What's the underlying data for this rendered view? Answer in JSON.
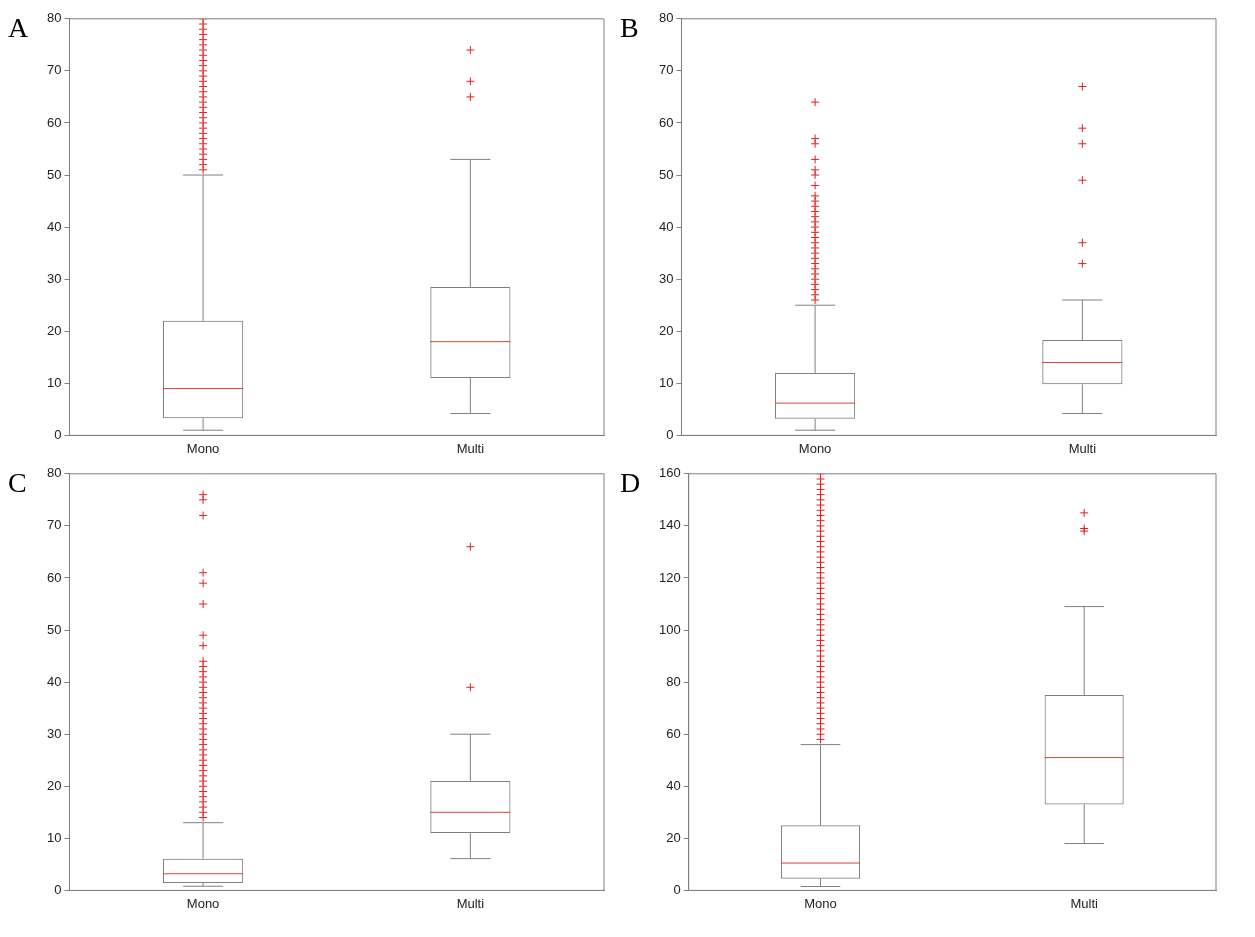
{
  "chart_data": [
    {
      "type": "box",
      "title": "A",
      "categories": [
        "Mono",
        "Multi"
      ],
      "color": "#808080",
      "marker": "cross",
      "ylim": [
        0,
        80
      ],
      "yticks": [
        0,
        10,
        20,
        30,
        40,
        50,
        60,
        70,
        80
      ],
      "boxes": [
        {
          "low": 1,
          "q1": 3.3,
          "median": 9,
          "q3": 22,
          "high": 50,
          "outliers": [
            51,
            52,
            53,
            54,
            55,
            56,
            57,
            58,
            59,
            60,
            61,
            62,
            63,
            64,
            65,
            66,
            67,
            68,
            69,
            70,
            71,
            72,
            73,
            74,
            75,
            76,
            77,
            78,
            79,
            80
          ]
        },
        {
          "low": 4.2,
          "q1": 11,
          "median": 18,
          "q3": 28.5,
          "high": 53,
          "outliers": [
            65,
            68,
            74
          ]
        }
      ]
    },
    {
      "type": "box",
      "title": "B",
      "categories": [
        "Mono",
        "Multi"
      ],
      "color": "#808080",
      "marker": "cross",
      "ylim": [
        0,
        80
      ],
      "yticks": [
        0,
        10,
        20,
        30,
        40,
        50,
        60,
        70,
        80
      ],
      "boxes": [
        {
          "low": 1,
          "q1": 3.2,
          "median": 6.2,
          "q3": 12,
          "high": 25,
          "outliers": [
            26,
            27,
            28,
            29,
            30,
            31,
            32,
            33,
            34,
            35,
            36,
            37,
            38,
            39,
            40,
            41,
            42,
            43,
            44,
            45,
            46,
            48,
            50,
            51,
            53,
            56,
            57,
            64
          ]
        },
        {
          "low": 4.2,
          "q1": 9.8,
          "median": 14,
          "q3": 18.3,
          "high": 26,
          "outliers": [
            33,
            37,
            49,
            56,
            59,
            67
          ]
        }
      ]
    },
    {
      "type": "box",
      "title": "C",
      "categories": [
        "Mono",
        "Multi"
      ],
      "color": "#808080",
      "marker": "cross",
      "ylim": [
        0,
        80
      ],
      "yticks": [
        0,
        10,
        20,
        30,
        40,
        50,
        60,
        70,
        80
      ],
      "boxes": [
        {
          "low": 0.8,
          "q1": 1.4,
          "median": 3.2,
          "q3": 6.1,
          "high": 13,
          "outliers": [
            14,
            15,
            16,
            17,
            18,
            19,
            20,
            21,
            22,
            23,
            24,
            25,
            26,
            27,
            28,
            29,
            30,
            31,
            32,
            33,
            34,
            35,
            36,
            37,
            38,
            39,
            40,
            41,
            42,
            43,
            44,
            47,
            49,
            55,
            59,
            61,
            72,
            75,
            76
          ]
        },
        {
          "low": 6.1,
          "q1": 11,
          "median": 15,
          "q3": 21,
          "high": 30,
          "outliers": [
            39,
            66
          ]
        }
      ]
    },
    {
      "type": "box",
      "title": "D",
      "categories": [
        "Mono",
        "Multi"
      ],
      "color": "#808080",
      "marker": "cross",
      "ylim": [
        0,
        160
      ],
      "yticks": [
        0,
        20,
        40,
        60,
        80,
        100,
        120,
        140,
        160
      ],
      "boxes": [
        {
          "low": 1.5,
          "q1": 4.5,
          "median": 10.5,
          "q3": 25,
          "high": 56,
          "outliers": [
            58,
            60,
            62,
            64,
            66,
            68,
            70,
            72,
            74,
            76,
            78,
            80,
            82,
            84,
            86,
            88,
            90,
            92,
            94,
            96,
            98,
            100,
            102,
            104,
            106,
            108,
            110,
            112,
            114,
            116,
            118,
            120,
            122,
            124,
            126,
            128,
            130,
            132,
            134,
            136,
            138,
            140,
            142,
            144,
            146,
            148,
            150,
            152,
            154,
            156,
            158,
            160
          ]
        },
        {
          "low": 18,
          "q1": 33,
          "median": 51,
          "q3": 75,
          "high": 109,
          "outliers": [
            138,
            139,
            145
          ]
        }
      ]
    }
  ]
}
